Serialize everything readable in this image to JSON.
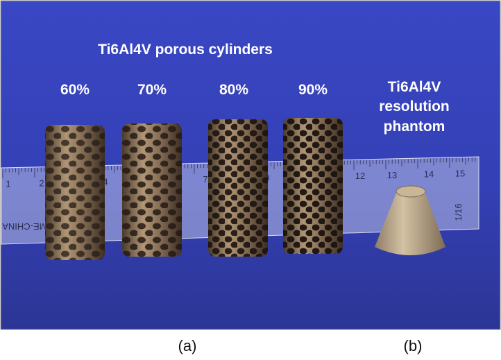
{
  "title": "Ti6Al4V porous cylinders",
  "porosity_labels": [
    "60%",
    "70%",
    "80%",
    "90%"
  ],
  "phantom_label": [
    "Ti6Al4V",
    "resolution",
    "phantom"
  ],
  "ruler": {
    "numbers": [
      "1",
      "2",
      "4",
      "7",
      "9",
      "12",
      "13",
      "14",
      "15"
    ],
    "brand": "CME-CHINA",
    "fraction": "1/16"
  },
  "panel_labels": [
    "(a)",
    "(b)"
  ]
}
